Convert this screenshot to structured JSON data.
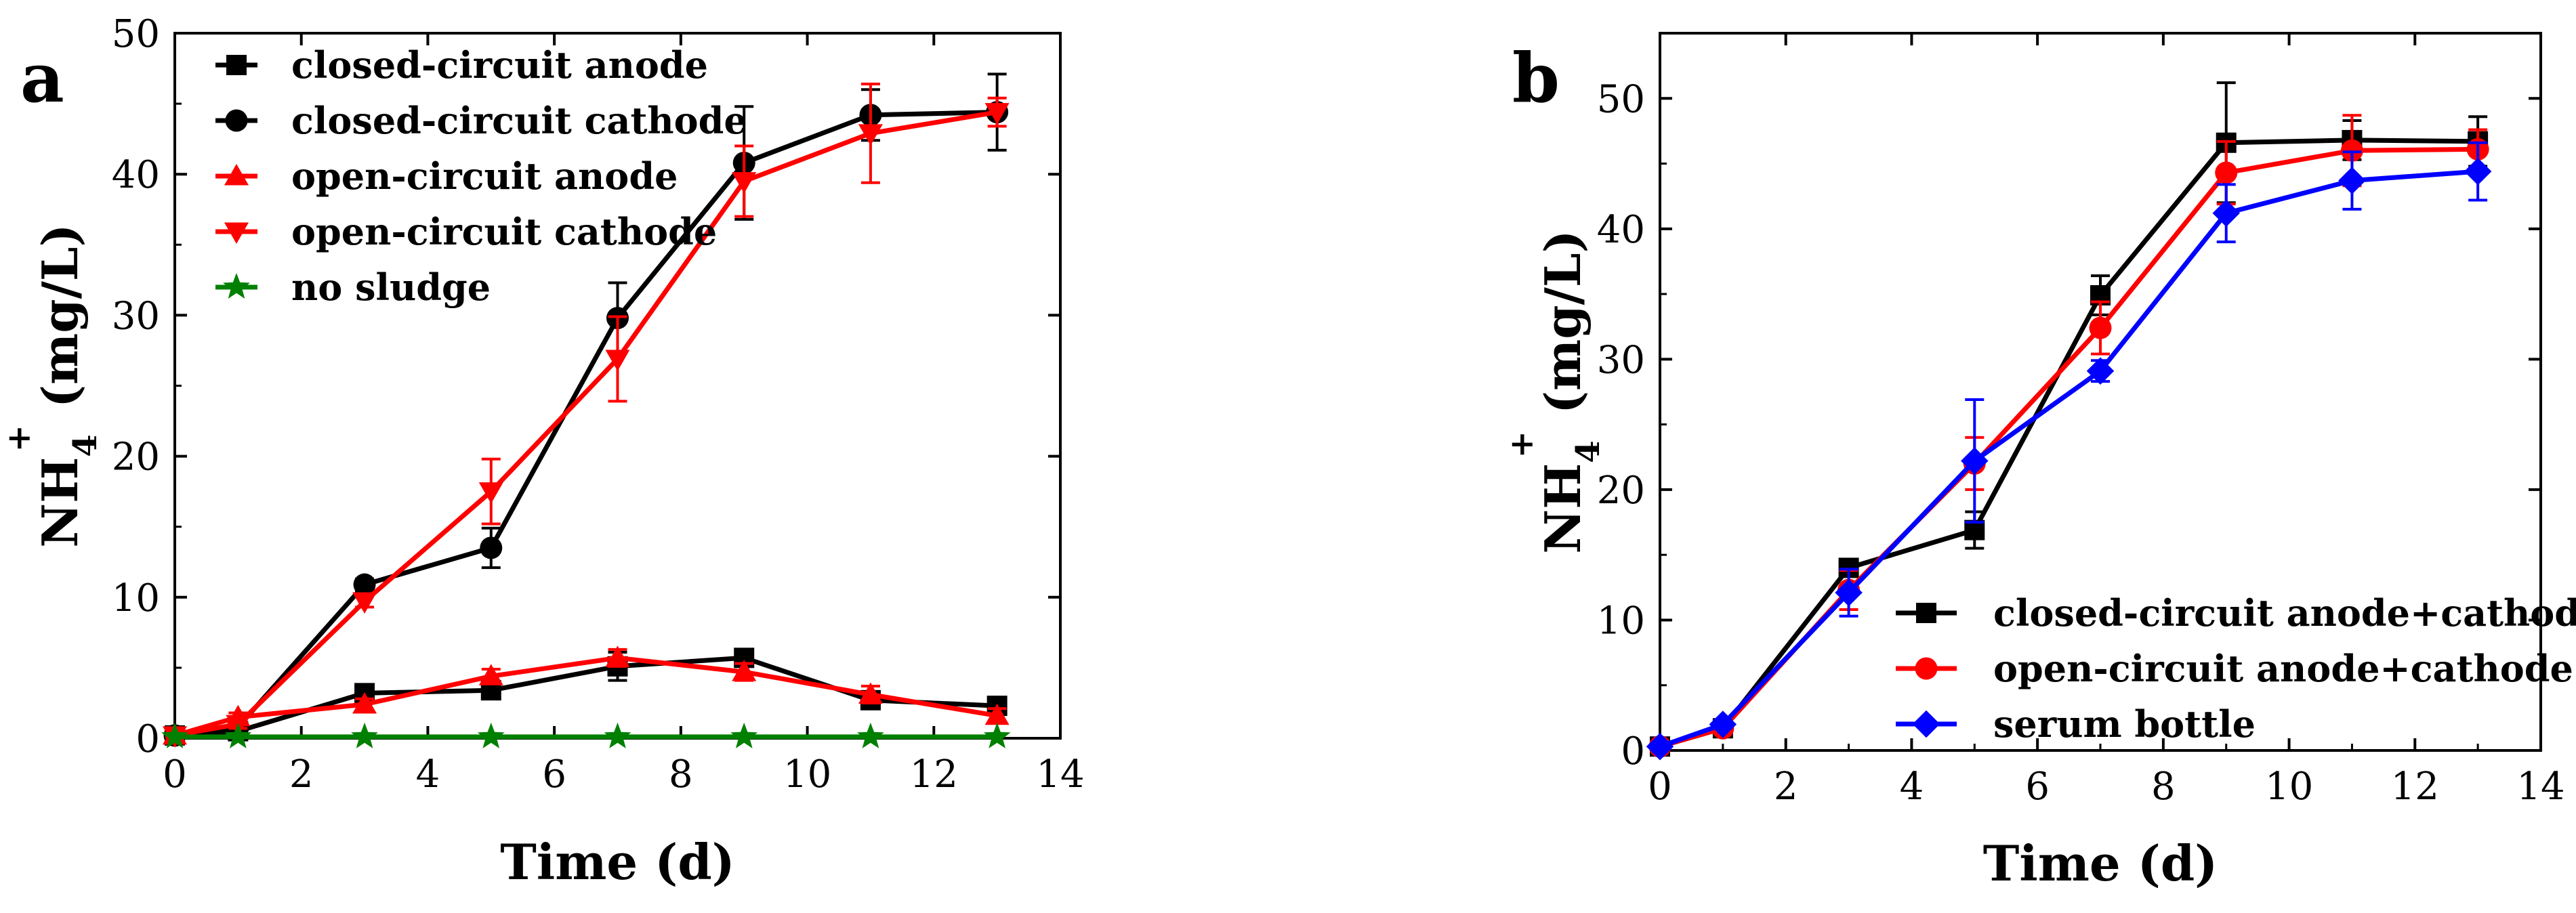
{
  "chart_data": [
    {
      "type": "line",
      "panel_label": "a",
      "xlabel": "Time (d)",
      "ylabel": "NH",
      "ylabel_sub": "4",
      "ylabel_sup": "+",
      "ylabel_units": " (mg/L)",
      "xlim": [
        0,
        14
      ],
      "ylim": [
        0,
        50
      ],
      "xticks": [
        "0",
        "2",
        "4",
        "6",
        "8",
        "10",
        "12",
        "14"
      ],
      "yticks": [
        "0",
        "10",
        "20",
        "30",
        "40",
        "50"
      ],
      "grid": false,
      "legend_position": "top-left",
      "x": [
        0,
        1,
        3,
        5,
        7,
        9,
        11,
        13
      ],
      "series": [
        {
          "name": "closed-circuit anode",
          "color": "#000000",
          "marker": "square",
          "values": [
            0.2,
            0.5,
            3.2,
            3.4,
            5.1,
            5.7,
            2.7,
            2.3
          ],
          "errors": [
            0.1,
            0.3,
            0.4,
            0.5,
            1.0,
            0.6,
            0.5,
            0.5
          ]
        },
        {
          "name": "closed-circuit cathode",
          "color": "#000000",
          "marker": "circle",
          "values": [
            0.2,
            0.8,
            10.9,
            13.5,
            29.8,
            40.8,
            44.2,
            44.4
          ],
          "errors": [
            0.1,
            0.3,
            0.4,
            1.4,
            2.5,
            4.0,
            1.8,
            2.7
          ]
        },
        {
          "name": "open-circuit anode",
          "color": "#ff0000",
          "marker": "triangle-up",
          "values": [
            0.2,
            1.5,
            2.4,
            4.4,
            5.7,
            4.7,
            3.1,
            1.6
          ],
          "errors": [
            0.1,
            0.3,
            0.4,
            0.5,
            0.6,
            0.6,
            0.6,
            0.5
          ]
        },
        {
          "name": "open-circuit cathode",
          "color": "#ff0000",
          "marker": "triangle-down",
          "values": [
            0.2,
            1.0,
            9.7,
            17.5,
            26.9,
            39.5,
            42.9,
            44.4
          ],
          "errors": [
            0.1,
            0.3,
            0.4,
            2.3,
            3.0,
            2.5,
            3.5,
            1.0
          ]
        },
        {
          "name": "no sludge",
          "color": "#008000",
          "marker": "star",
          "values": [
            0.1,
            0.1,
            0.1,
            0.1,
            0.1,
            0.1,
            0.1,
            0.1
          ],
          "errors": [
            0,
            0,
            0,
            0,
            0,
            0,
            0,
            0
          ]
        }
      ]
    },
    {
      "type": "line",
      "panel_label": "b",
      "xlabel": "Time (d)",
      "ylabel": "NH",
      "ylabel_sub": "4",
      "ylabel_sup": "+",
      "ylabel_units": " (mg/L)",
      "xlim": [
        0,
        14
      ],
      "ylim": [
        0,
        55
      ],
      "xticks": [
        "0",
        "2",
        "4",
        "6",
        "8",
        "10",
        "12",
        "14"
      ],
      "yticks": [
        "0",
        "10",
        "20",
        "30",
        "40",
        "50"
      ],
      "grid": false,
      "legend_position": "bottom-right",
      "x": [
        0,
        1,
        3,
        5,
        7,
        9,
        11,
        13
      ],
      "series": [
        {
          "name": "closed-circuit anode+cathode",
          "color": "#000000",
          "marker": "square",
          "values": [
            0.3,
            1.7,
            14.0,
            16.9,
            34.9,
            46.6,
            46.8,
            46.7
          ],
          "errors": [
            0.1,
            0.3,
            0.5,
            1.4,
            1.5,
            4.6,
            1.5,
            1.9
          ]
        },
        {
          "name": "open-circuit anode+cathode",
          "color": "#ff0000",
          "marker": "circle",
          "values": [
            0.3,
            1.7,
            12.3,
            22.0,
            32.4,
            44.3,
            46.0,
            46.1
          ],
          "errors": [
            0.1,
            0.3,
            1.5,
            2.0,
            2.0,
            2.4,
            2.7,
            1.5
          ]
        },
        {
          "name": "serum bottle",
          "color": "#0000ff",
          "marker": "diamond",
          "values": [
            0.3,
            2.0,
            12.1,
            22.2,
            29.1,
            41.2,
            43.7,
            44.4
          ],
          "errors": [
            0.1,
            0.3,
            1.8,
            4.7,
            0.8,
            2.2,
            2.2,
            2.2
          ]
        }
      ]
    }
  ]
}
